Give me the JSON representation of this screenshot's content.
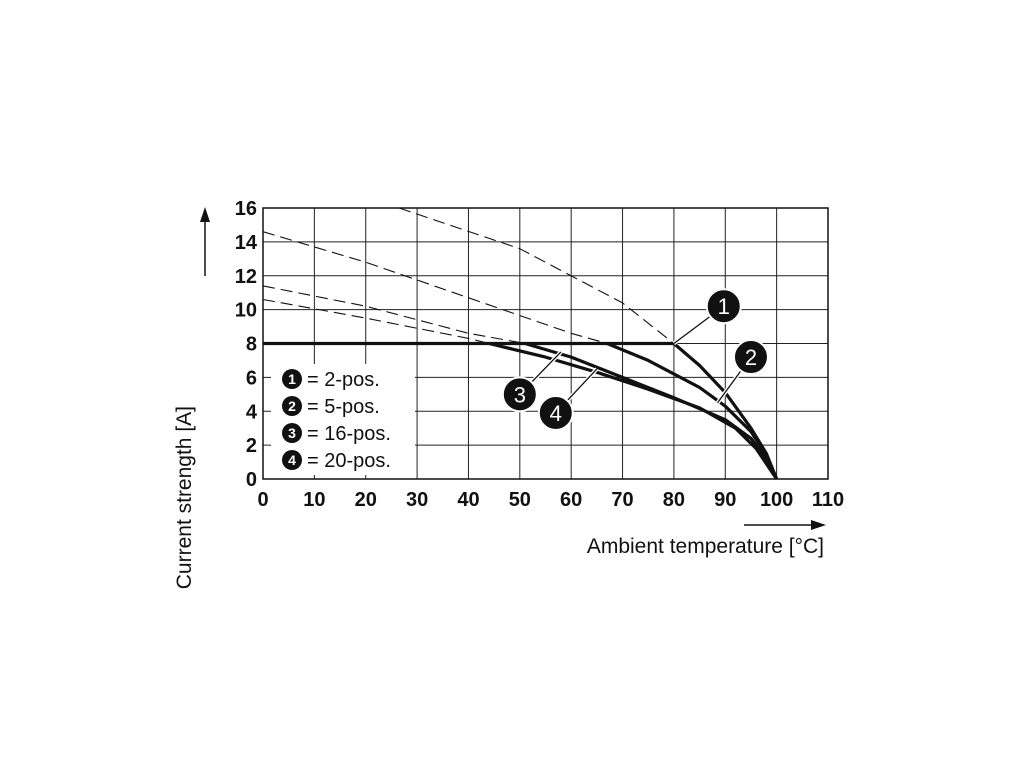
{
  "chart_data": {
    "type": "line",
    "xlabel": "Ambient temperature [°C]",
    "ylabel": "Current strength [A]",
    "xlim": [
      0,
      110
    ],
    "ylim": [
      0,
      16
    ],
    "x_ticks": [
      "0",
      "10",
      "20",
      "30",
      "40",
      "50",
      "60",
      "70",
      "80",
      "90",
      "100",
      "110"
    ],
    "y_ticks": [
      "0",
      "2",
      "4",
      "6",
      "8",
      "10",
      "12",
      "14",
      "16"
    ],
    "grid": true,
    "limit_line": {
      "y": 8,
      "x": [
        0,
        80
      ]
    },
    "series": [
      {
        "marker": "1",
        "name": "2-pos.",
        "dashed": [
          [
            26.5,
            16
          ],
          [
            50,
            13.6
          ],
          [
            70,
            10.4
          ],
          [
            80,
            8
          ]
        ],
        "solid": [
          [
            80,
            8
          ],
          [
            85,
            6.7
          ],
          [
            90,
            5.1
          ],
          [
            95,
            3
          ],
          [
            98,
            1.5
          ],
          [
            100,
            0
          ]
        ]
      },
      {
        "marker": "2",
        "name": "5-pos.",
        "dashed": [
          [
            0,
            14.6
          ],
          [
            20,
            12.8
          ],
          [
            40,
            10.7
          ],
          [
            60,
            8.6
          ],
          [
            67,
            8
          ]
        ],
        "solid": [
          [
            67,
            8
          ],
          [
            75,
            7.0
          ],
          [
            85,
            5.4
          ],
          [
            90,
            4.3
          ],
          [
            95,
            2.8
          ],
          [
            98,
            1.4
          ],
          [
            100,
            0
          ]
        ]
      },
      {
        "marker": "3",
        "name": "16-pos.",
        "dashed": [
          [
            0,
            11.4
          ],
          [
            20,
            10.2
          ],
          [
            40,
            8.6
          ],
          [
            51,
            8
          ]
        ],
        "solid": [
          [
            51,
            8
          ],
          [
            60,
            7.2
          ],
          [
            70,
            6.0
          ],
          [
            80,
            4.8
          ],
          [
            90,
            3.5
          ],
          [
            95,
            2.4
          ],
          [
            98,
            1.2
          ],
          [
            100,
            0
          ]
        ]
      },
      {
        "marker": "4",
        "name": "20-pos.",
        "dashed": [
          [
            0,
            10.6
          ],
          [
            20,
            9.5
          ],
          [
            40,
            8.3
          ],
          [
            44,
            8
          ]
        ],
        "solid": [
          [
            44,
            8
          ],
          [
            55,
            7.2
          ],
          [
            65,
            6.3
          ],
          [
            75,
            5.3
          ],
          [
            85,
            4.2
          ],
          [
            92,
            3.0
          ],
          [
            96,
            1.8
          ],
          [
            100,
            0
          ]
        ]
      }
    ],
    "callouts": [
      {
        "label": "1",
        "point": [
          80,
          8
        ],
        "badge": [
          89.7,
          10.2
        ]
      },
      {
        "label": "2",
        "point": [
          88.5,
          4.5
        ],
        "badge": [
          95,
          7.2
        ]
      },
      {
        "label": "3",
        "point": [
          58,
          7.5
        ],
        "badge": [
          50,
          5.0
        ]
      },
      {
        "label": "4",
        "point": [
          65,
          6.5
        ],
        "badge": [
          57,
          3.9
        ]
      }
    ],
    "legend": {
      "placement": "bottom-left",
      "items": [
        {
          "marker": "1",
          "text": "= 2-pos."
        },
        {
          "marker": "2",
          "text": "= 5-pos."
        },
        {
          "marker": "3",
          "text": "= 16-pos."
        },
        {
          "marker": "4",
          "text": "= 20-pos."
        }
      ]
    }
  }
}
